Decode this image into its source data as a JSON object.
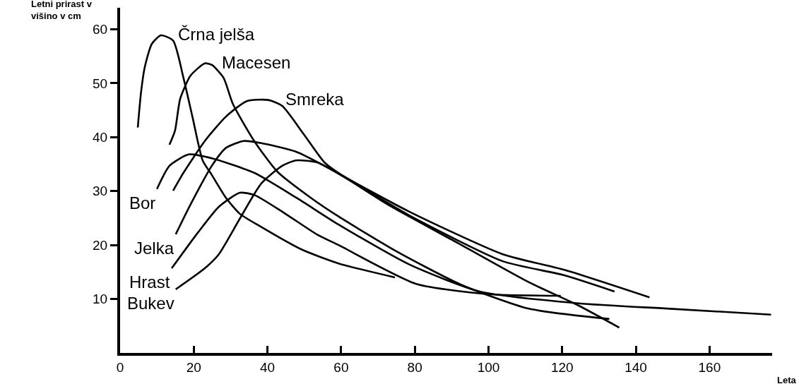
{
  "chart_data": {
    "type": "line",
    "xlabel": "Leta",
    "ylabel": "Letni prirast v višino v cm",
    "xlim": [
      0,
      177
    ],
    "ylim": [
      0,
      64
    ],
    "xticks": [
      0,
      20,
      40,
      60,
      80,
      100,
      120,
      140,
      160
    ],
    "yticks": [
      10,
      20,
      30,
      40,
      50,
      60
    ],
    "grid": false,
    "legend": false,
    "marker": "none",
    "line_style": "solid",
    "series": [
      {
        "name": "Črna jelša",
        "color": "#000000",
        "x": [
          4.8,
          5.7,
          6.7,
          8.6,
          11.1,
          14.4,
          17.2,
          19.7,
          22.4,
          24.9,
          28.7,
          32.5,
          37.7,
          49.2,
          59.3,
          74.6
        ],
        "values": [
          41.8,
          48.4,
          53,
          57.3,
          58.9,
          57.9,
          51,
          43.6,
          35.7,
          33,
          28.8,
          25.8,
          23.6,
          19.2,
          16.6,
          14
        ]
      },
      {
        "name": "Macesen",
        "color": "#000000",
        "x": [
          13.4,
          14.9,
          16.3,
          19.1,
          23,
          24.9,
          28.1,
          30.6,
          36.4,
          42.7,
          51.7,
          59.3,
          74.6,
          92.4,
          111,
          132.8
        ],
        "values": [
          38.6,
          41.2,
          47.1,
          51.4,
          53.7,
          53.4,
          51,
          46.2,
          39.3,
          33.6,
          28.8,
          25.3,
          19,
          12.7,
          8.2,
          6.3
        ]
      },
      {
        "name": "Smreka",
        "color": "#000000",
        "x": [
          14.4,
          17.2,
          23,
          28.7,
          34.4,
          40.2,
          44,
          49.8,
          55.5,
          59.9,
          78.5,
          103.9,
          120.6,
          143.7
        ],
        "values": [
          30.1,
          33.4,
          39.3,
          43.8,
          46.7,
          46.9,
          45.8,
          40.6,
          35.3,
          33.1,
          26.2,
          18.3,
          15.4,
          10.3
        ]
      },
      {
        "name": "Bor",
        "color": "#000000",
        "x": [
          10,
          13.4,
          18.6,
          24.9,
          36.4,
          47.8,
          59.3,
          78.5,
          97.6,
          124.4,
          149.3,
          176.7
        ],
        "values": [
          30.4,
          34.7,
          36.8,
          36.1,
          33.4,
          28.8,
          23.8,
          16.4,
          11.4,
          9.2,
          8.2,
          7.1
        ]
      },
      {
        "name": "Jelka",
        "color": "#000000",
        "x": [
          15.1,
          19.1,
          24.9,
          28.7,
          33.5,
          38.3,
          47.8,
          59.9,
          72.7,
          91.9,
          111,
          124.4,
          135.5
        ],
        "values": [
          22,
          27.5,
          34.7,
          38,
          39.3,
          38.9,
          37.3,
          33,
          27.5,
          20.3,
          13.1,
          8.8,
          4.7
        ]
      },
      {
        "name": "Hrast",
        "color": "#000000",
        "x": [
          14,
          21.1,
          26.8,
          32.5,
          36.4,
          44,
          53.6,
          59.3,
          80.4,
          100.1,
          119.6
        ],
        "values": [
          15.7,
          22.3,
          27.1,
          29.7,
          29.3,
          26.2,
          21.9,
          20,
          12.8,
          10.9,
          10.6
        ]
      },
      {
        "name": "Bukev",
        "color": "#000000",
        "x": [
          15.1,
          23,
          26.8,
          32.5,
          38.3,
          44,
          47.8,
          53.6,
          59.9,
          78.5,
          103.9,
          120.6,
          134.2
        ],
        "values": [
          11.8,
          15.7,
          18.3,
          24.9,
          31.4,
          34.7,
          35.7,
          35.3,
          33,
          25.5,
          17,
          14.4,
          11.4
        ]
      }
    ]
  }
}
